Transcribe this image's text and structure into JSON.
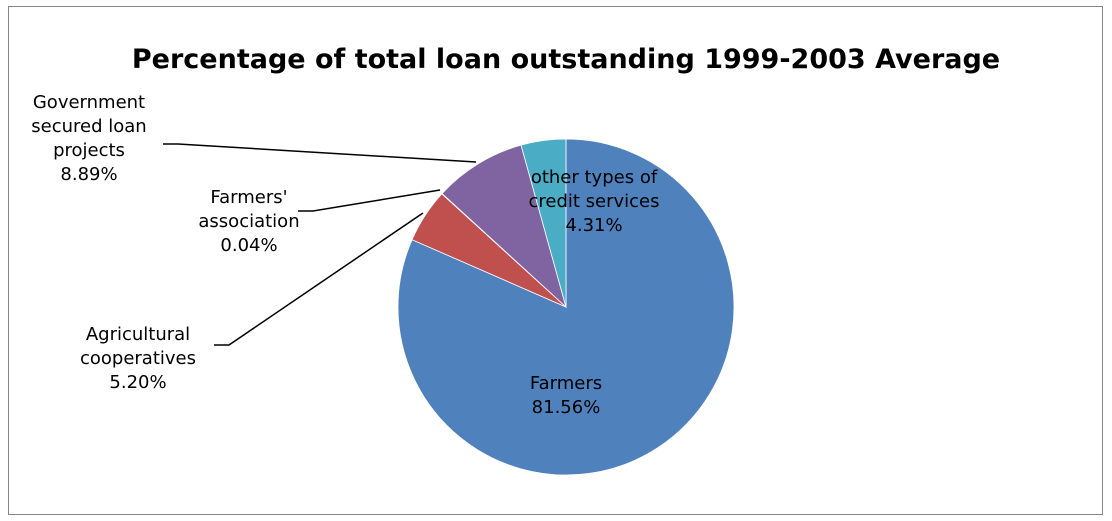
{
  "chart_data": {
    "type": "pie",
    "title": "Percentage of total loan outstanding 1999-2003 Average",
    "legend": "none",
    "slices": [
      {
        "label_lines": [
          "Farmers",
          "81.56%"
        ],
        "value": 81.56,
        "color": "#4F81BD"
      },
      {
        "label_lines": [
          "Agricultural",
          "cooperatives",
          "5.20%"
        ],
        "value": 5.2,
        "color": "#C0504D"
      },
      {
        "label_lines": [
          "Farmers'",
          "association",
          "0.04%"
        ],
        "value": 0.04,
        "color": "#9BBB59"
      },
      {
        "label_lines": [
          "Government",
          "secured loan",
          "projects",
          "8.89%"
        ],
        "value": 8.89,
        "color": "#8064A2"
      },
      {
        "label_lines": [
          "other types of",
          "credit services",
          "4.31%"
        ],
        "value": 4.31,
        "color": "#4BACC6"
      }
    ]
  }
}
